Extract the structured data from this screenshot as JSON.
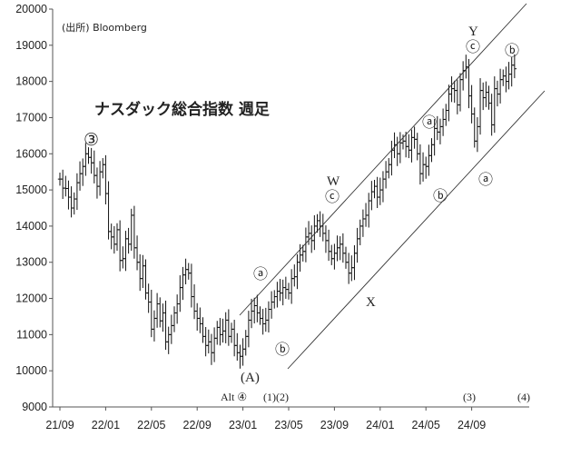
{
  "chart_data": {
    "type": "ohlc",
    "title": "ナスダック総合指数 週足",
    "source": "(出所) Bloomberg",
    "ylim": [
      9000,
      20000
    ],
    "y_ticks": [
      9000,
      10000,
      11000,
      12000,
      13000,
      14000,
      15000,
      16000,
      17000,
      18000,
      19000,
      20000
    ],
    "x_range": [
      "2021-09",
      "2024-12"
    ],
    "x_ticks": [
      "21/09",
      "22/01",
      "22/05",
      "22/09",
      "23/01",
      "23/05",
      "23/09",
      "24/01",
      "24/05",
      "24/09"
    ],
    "x_tick_months": [
      0,
      4,
      8,
      12,
      16,
      20,
      24,
      28,
      32,
      36
    ],
    "grid": false,
    "series": [
      {
        "values": [
          [
            0.0,
            15300
          ],
          [
            0.25,
            15050
          ],
          [
            0.5,
            15040
          ],
          [
            0.75,
            14800
          ],
          [
            1.0,
            14500
          ],
          [
            1.25,
            14750
          ],
          [
            1.5,
            15200
          ],
          [
            1.75,
            15450
          ],
          [
            2.0,
            15650
          ],
          [
            2.25,
            16000
          ],
          [
            2.5,
            15900
          ],
          [
            2.75,
            15750
          ],
          [
            3.0,
            15400
          ],
          [
            3.25,
            15100
          ],
          [
            3.5,
            15500
          ],
          [
            3.75,
            15700
          ],
          [
            4.0,
            14900
          ],
          [
            4.25,
            13850
          ],
          [
            4.5,
            13700
          ],
          [
            4.75,
            13500
          ],
          [
            5.0,
            13900
          ],
          [
            5.25,
            13050
          ],
          [
            5.5,
            13100
          ],
          [
            5.75,
            13650
          ],
          [
            6.0,
            13500
          ],
          [
            6.25,
            14300
          ],
          [
            6.5,
            13400
          ],
          [
            6.75,
            13000
          ],
          [
            7.0,
            12550
          ],
          [
            7.25,
            12900
          ],
          [
            7.5,
            12150
          ],
          [
            7.75,
            11900
          ],
          [
            8.0,
            11150
          ],
          [
            8.25,
            11450
          ],
          [
            8.5,
            11850
          ],
          [
            8.75,
            11380
          ],
          [
            9.0,
            11600
          ],
          [
            9.25,
            10800
          ],
          [
            9.5,
            11000
          ],
          [
            9.75,
            11250
          ],
          [
            10.0,
            11600
          ],
          [
            10.25,
            11850
          ],
          [
            10.5,
            12300
          ],
          [
            10.75,
            12650
          ],
          [
            11.0,
            12800
          ],
          [
            11.25,
            12700
          ],
          [
            11.5,
            12050
          ],
          [
            11.75,
            11650
          ],
          [
            12.0,
            11450
          ],
          [
            12.25,
            11300
          ],
          [
            12.5,
            10950
          ],
          [
            12.75,
            10700
          ],
          [
            13.0,
            10800
          ],
          [
            13.25,
            10500
          ],
          [
            13.5,
            10900
          ],
          [
            13.75,
            11200
          ],
          [
            14.0,
            11000
          ],
          [
            14.25,
            11100
          ],
          [
            14.5,
            11400
          ],
          [
            14.75,
            10950
          ],
          [
            15.0,
            11150
          ],
          [
            15.25,
            10700
          ],
          [
            15.5,
            10500
          ],
          [
            15.75,
            10400
          ],
          [
            16.0,
            10600
          ],
          [
            16.25,
            10950
          ],
          [
            16.5,
            11400
          ],
          [
            16.75,
            11650
          ],
          [
            17.0,
            11800
          ],
          [
            17.25,
            11600
          ],
          [
            17.5,
            11450
          ],
          [
            17.75,
            11300
          ],
          [
            18.0,
            11400
          ],
          [
            18.25,
            11700
          ],
          [
            18.5,
            11900
          ],
          [
            18.75,
            12050
          ],
          [
            19.0,
            12200
          ],
          [
            19.25,
            12150
          ],
          [
            19.5,
            12300
          ],
          [
            19.75,
            12250
          ],
          [
            20.0,
            12150
          ],
          [
            20.25,
            12550
          ],
          [
            20.5,
            12600
          ],
          [
            20.75,
            13000
          ],
          [
            21.0,
            13200
          ],
          [
            21.25,
            13300
          ],
          [
            21.5,
            13700
          ],
          [
            21.75,
            13800
          ],
          [
            22.0,
            13600
          ],
          [
            22.25,
            14000
          ],
          [
            22.5,
            14150
          ],
          [
            22.75,
            14000
          ],
          [
            23.0,
            13800
          ],
          [
            23.25,
            13600
          ],
          [
            23.5,
            13300
          ],
          [
            23.75,
            13100
          ],
          [
            24.0,
            13250
          ],
          [
            24.25,
            13400
          ],
          [
            24.5,
            13500
          ],
          [
            24.75,
            13250
          ],
          [
            25.0,
            13000
          ],
          [
            25.25,
            12700
          ],
          [
            25.5,
            12850
          ],
          [
            25.75,
            13250
          ],
          [
            26.0,
            13650
          ],
          [
            26.25,
            14000
          ],
          [
            26.5,
            14200
          ],
          [
            26.75,
            14300
          ],
          [
            27.0,
            14700
          ],
          [
            27.25,
            14950
          ],
          [
            27.5,
            15100
          ],
          [
            27.75,
            14800
          ],
          [
            28.0,
            15000
          ],
          [
            28.25,
            15300
          ],
          [
            28.5,
            15500
          ],
          [
            28.75,
            15700
          ],
          [
            29.0,
            16100
          ],
          [
            29.25,
            16250
          ],
          [
            29.5,
            16000
          ],
          [
            29.75,
            16300
          ],
          [
            30.0,
            16350
          ],
          [
            30.25,
            16200
          ],
          [
            30.5,
            16100
          ],
          [
            30.75,
            16450
          ],
          [
            31.0,
            16400
          ],
          [
            31.25,
            16000
          ],
          [
            31.5,
            15450
          ],
          [
            31.75,
            15700
          ],
          [
            32.0,
            15650
          ],
          [
            32.25,
            15950
          ],
          [
            32.5,
            16250
          ],
          [
            32.75,
            16700
          ],
          [
            33.0,
            16600
          ],
          [
            33.25,
            16750
          ],
          [
            33.5,
            16950
          ],
          [
            33.75,
            17200
          ],
          [
            34.0,
            17650
          ],
          [
            34.25,
            17800
          ],
          [
            34.5,
            17750
          ],
          [
            34.75,
            17350
          ],
          [
            35.0,
            18050
          ],
          [
            35.25,
            18300
          ],
          [
            35.5,
            18400
          ],
          [
            35.75,
            17600
          ],
          [
            36.0,
            17100
          ],
          [
            36.25,
            16350
          ],
          [
            36.5,
            16750
          ],
          [
            36.75,
            17750
          ],
          [
            37.0,
            17550
          ],
          [
            37.25,
            17700
          ],
          [
            37.5,
            17400
          ],
          [
            37.75,
            16800
          ],
          [
            38.0,
            17800
          ],
          [
            38.25,
            17650
          ],
          [
            38.5,
            18050
          ],
          [
            38.75,
            18150
          ],
          [
            39.0,
            18000
          ],
          [
            39.25,
            18200
          ],
          [
            39.5,
            18450
          ],
          [
            39.75,
            18350
          ]
        ]
      }
    ]
  },
  "annotations": {
    "wave3": "③",
    "W": "W",
    "X": "X",
    "Y": "Y",
    "A": "(A)",
    "alt4": "Alt ④",
    "w12": "(1)(2)",
    "w3": "(3)",
    "w4": "(4)",
    "circ_a": "ⓐ",
    "circ_b": "ⓑ",
    "circ_c": "ⓒ"
  }
}
